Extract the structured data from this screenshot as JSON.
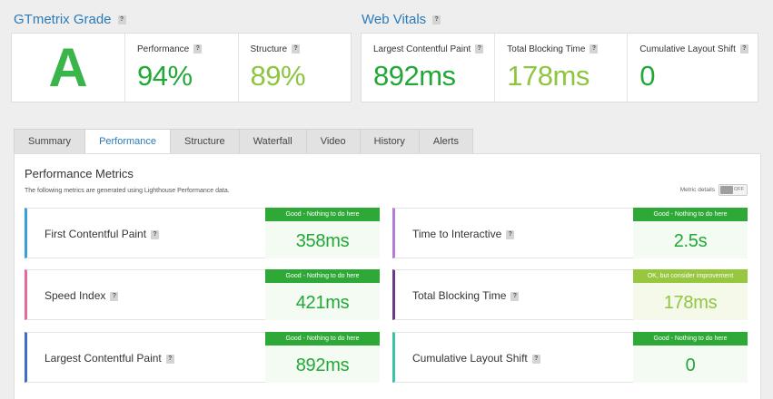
{
  "grade_section": {
    "title": "GTmetrix Grade",
    "grade": "A",
    "grade_color": "#3ab54a",
    "performance": {
      "label": "Performance",
      "value": "94%"
    },
    "structure": {
      "label": "Structure",
      "value": "89%"
    }
  },
  "vitals_section": {
    "title": "Web Vitals",
    "lcp": {
      "label": "Largest Contentful Paint",
      "value": "892ms"
    },
    "tbt": {
      "label": "Total Blocking Time",
      "value": "178ms"
    },
    "cls": {
      "label": "Cumulative Layout Shift",
      "value": "0"
    }
  },
  "help_icon": "?",
  "tabs": [
    {
      "label": "Summary"
    },
    {
      "label": "Performance"
    },
    {
      "label": "Structure"
    },
    {
      "label": "Waterfall"
    },
    {
      "label": "Video"
    },
    {
      "label": "History"
    },
    {
      "label": "Alerts"
    }
  ],
  "active_tab": "Performance",
  "metrics_panel": {
    "title": "Performance Metrics",
    "subtitle": "The following metrics are generated using Lighthouse Performance data.",
    "toggle_label": "Metric details",
    "toggle_state": "OFF"
  },
  "metrics": [
    {
      "name": "First Contentful Paint",
      "badge": "Good - Nothing to do here",
      "value": "358ms",
      "border_color": "#3aa0dc",
      "badge_color": "#2ea836",
      "value_color": "#22a838"
    },
    {
      "name": "Time to Interactive",
      "badge": "Good - Nothing to do here",
      "value": "2.5s",
      "border_color": "#b57ed6",
      "badge_color": "#2ea836",
      "value_color": "#22a838"
    },
    {
      "name": "Speed Index",
      "badge": "Good - Nothing to do here",
      "value": "421ms",
      "border_color": "#e46aa3",
      "badge_color": "#2ea836",
      "value_color": "#22a838"
    },
    {
      "name": "Total Blocking Time",
      "badge": "OK, but consider improvement",
      "value": "178ms",
      "border_color": "#6b3a8a",
      "badge_color": "#97c63f",
      "value_color": "#8fc540"
    },
    {
      "name": "Largest Contentful Paint",
      "badge": "Good - Nothing to do here",
      "value": "892ms",
      "border_color": "#3f6ec6",
      "badge_color": "#2ea836",
      "value_color": "#22a838"
    },
    {
      "name": "Cumulative Layout Shift",
      "badge": "Good - Nothing to do here",
      "value": "0",
      "border_color": "#3cc2a4",
      "badge_color": "#2ea836",
      "value_color": "#22a838"
    }
  ]
}
